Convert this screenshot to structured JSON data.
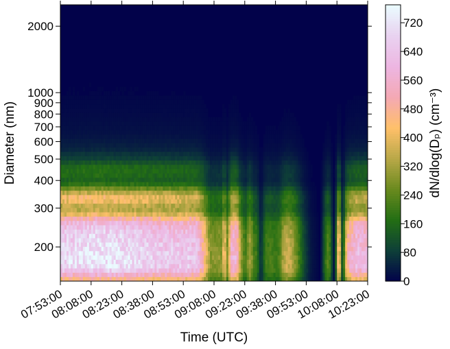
{
  "chart_data": {
    "type": "heatmap",
    "xlabel": "Time (UTC)",
    "ylabel": "Diameter (nm)",
    "colorbar_label": "dN/dlog(Dₚ) (cm⁻³)",
    "x_tick_labels": [
      "07:53:00",
      "08:08:00",
      "08:23:00",
      "08:38:00",
      "08:53:00",
      "09:08:00",
      "09:23:00",
      "09:38:00",
      "09:53:00",
      "10:08:00",
      "10:23:00"
    ],
    "x_tick_minutes": [
      473,
      488,
      503,
      518,
      533,
      548,
      563,
      578,
      593,
      608,
      623
    ],
    "xlim_minutes": [
      473,
      623
    ],
    "y_scale": "log",
    "ylim": [
      140,
      2500
    ],
    "y_ticks": [
      {
        "value": 2000,
        "label": "2000"
      },
      {
        "value": 1000,
        "label": "1000"
      },
      {
        "value": 900,
        "label": "900"
      },
      {
        "value": 800,
        "label": "800"
      },
      {
        "value": 700,
        "label": "700"
      },
      {
        "value": 600,
        "label": "600"
      },
      {
        "value": 500,
        "label": "500"
      },
      {
        "value": 400,
        "label": "400"
      },
      {
        "value": 300,
        "label": "300"
      },
      {
        "value": 200,
        "label": "200"
      }
    ],
    "colorbar_ticks": [
      0,
      80,
      160,
      240,
      320,
      400,
      480,
      560,
      640,
      720
    ],
    "clim": [
      0,
      770
    ],
    "colormap": "cubehelix-like (navy → green → gold → pink → white)",
    "colormap_stops": [
      "#02024a",
      "#0e3f38",
      "#236e14",
      "#6a8a1e",
      "#b9a848",
      "#ffc06a",
      "#f4a8b4",
      "#edb6e2",
      "#e9d2f0",
      "#eafcff"
    ],
    "profile": {
      "diameters_nm": [
        140,
        160,
        180,
        200,
        230,
        260,
        280,
        300,
        320,
        340,
        360,
        380,
        400,
        430,
        460,
        500,
        560,
        650,
        800,
        1000,
        2500
      ],
      "high_values": [
        430,
        720,
        740,
        720,
        690,
        610,
        420,
        330,
        420,
        430,
        320,
        200,
        150,
        175,
        170,
        95,
        45,
        22,
        12,
        6,
        0
      ],
      "low_values": [
        250,
        230,
        215,
        200,
        195,
        190,
        165,
        140,
        120,
        110,
        90,
        70,
        55,
        45,
        38,
        28,
        18,
        10,
        5,
        2,
        0
      ]
    },
    "time_minutes": [
      473,
      480,
      490,
      500,
      510,
      515,
      520,
      525,
      530,
      533,
      537,
      540,
      542,
      544,
      546,
      548,
      550,
      552,
      553,
      554,
      555,
      556,
      557,
      558,
      559,
      560,
      561,
      562,
      563,
      565,
      566,
      567,
      569,
      570,
      571,
      573,
      575,
      578,
      580,
      582,
      584,
      586,
      588,
      590,
      592,
      595,
      600,
      603,
      604,
      606,
      607,
      608,
      609,
      610,
      611,
      612,
      613,
      615,
      618,
      620,
      623
    ],
    "activity": [
      0.92,
      0.95,
      1.0,
      0.97,
      0.93,
      0.9,
      0.88,
      0.86,
      0.85,
      0.85,
      0.86,
      0.82,
      0.62,
      0.45,
      0.3,
      0.3,
      0.3,
      0.3,
      0.55,
      0.3,
      0.28,
      0.62,
      0.7,
      0.72,
      0.7,
      0.5,
      0.3,
      0.3,
      0.18,
      0.32,
      0.35,
      0.22,
      0.2,
      0.1,
      0.05,
      0.2,
      0.22,
      0.2,
      0.22,
      0.35,
      0.4,
      0.35,
      0.28,
      0.18,
      0.1,
      0.03,
      0.0,
      0.22,
      0.25,
      0.05,
      0.0,
      0.28,
      0.65,
      0.2,
      0.05,
      0.35,
      0.55,
      0.65,
      0.78,
      0.75,
      0.72
    ]
  }
}
